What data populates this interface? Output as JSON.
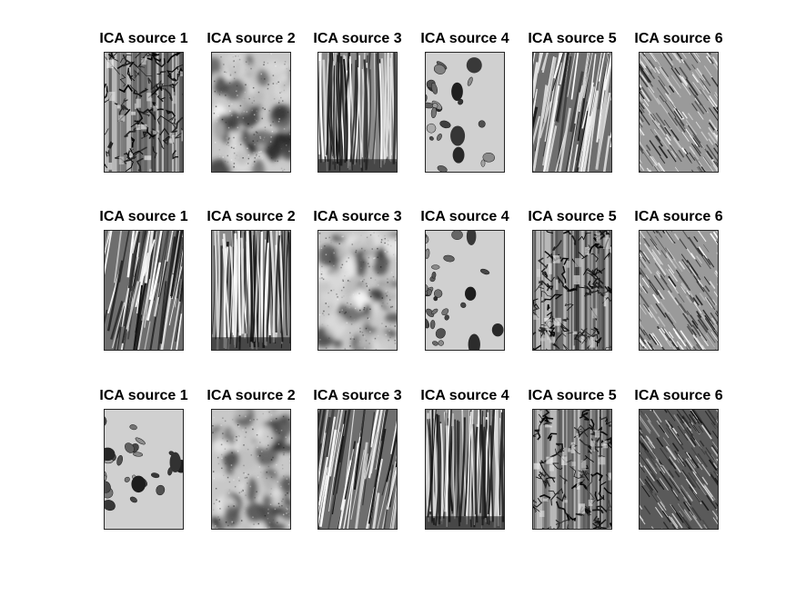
{
  "figure": {
    "background": "#ffffff",
    "rows": [
      {
        "panels": [
          {
            "title": "ICA source 1",
            "texture": "cracked-bark"
          },
          {
            "title": "ICA source 2",
            "texture": "cloudy-blotches"
          },
          {
            "title": "ICA source 3",
            "texture": "vertical-fibers"
          },
          {
            "title": "ICA source 4",
            "texture": "pebbles"
          },
          {
            "title": "ICA source 5",
            "texture": "diagonal-straw"
          },
          {
            "title": "ICA source 6",
            "texture": "diagonal-grain"
          }
        ]
      },
      {
        "panels": [
          {
            "title": "ICA source 1",
            "texture": "diagonal-straw"
          },
          {
            "title": "ICA source 2",
            "texture": "vertical-fibers"
          },
          {
            "title": "ICA source 3",
            "texture": "cloudy-blotches"
          },
          {
            "title": "ICA source 4",
            "texture": "pebbles"
          },
          {
            "title": "ICA source 5",
            "texture": "cracked-bark"
          },
          {
            "title": "ICA source 6",
            "texture": "diagonal-grain"
          }
        ]
      },
      {
        "panels": [
          {
            "title": "ICA source 1",
            "texture": "pebbles"
          },
          {
            "title": "ICA source 2",
            "texture": "cloudy-blotches"
          },
          {
            "title": "ICA source 3",
            "texture": "diagonal-straw"
          },
          {
            "title": "ICA source 4",
            "texture": "vertical-fibers"
          },
          {
            "title": "ICA source 5",
            "texture": "cracked-bark"
          },
          {
            "title": "ICA source 6",
            "texture": "diagonal-grain-dark"
          }
        ]
      }
    ]
  }
}
